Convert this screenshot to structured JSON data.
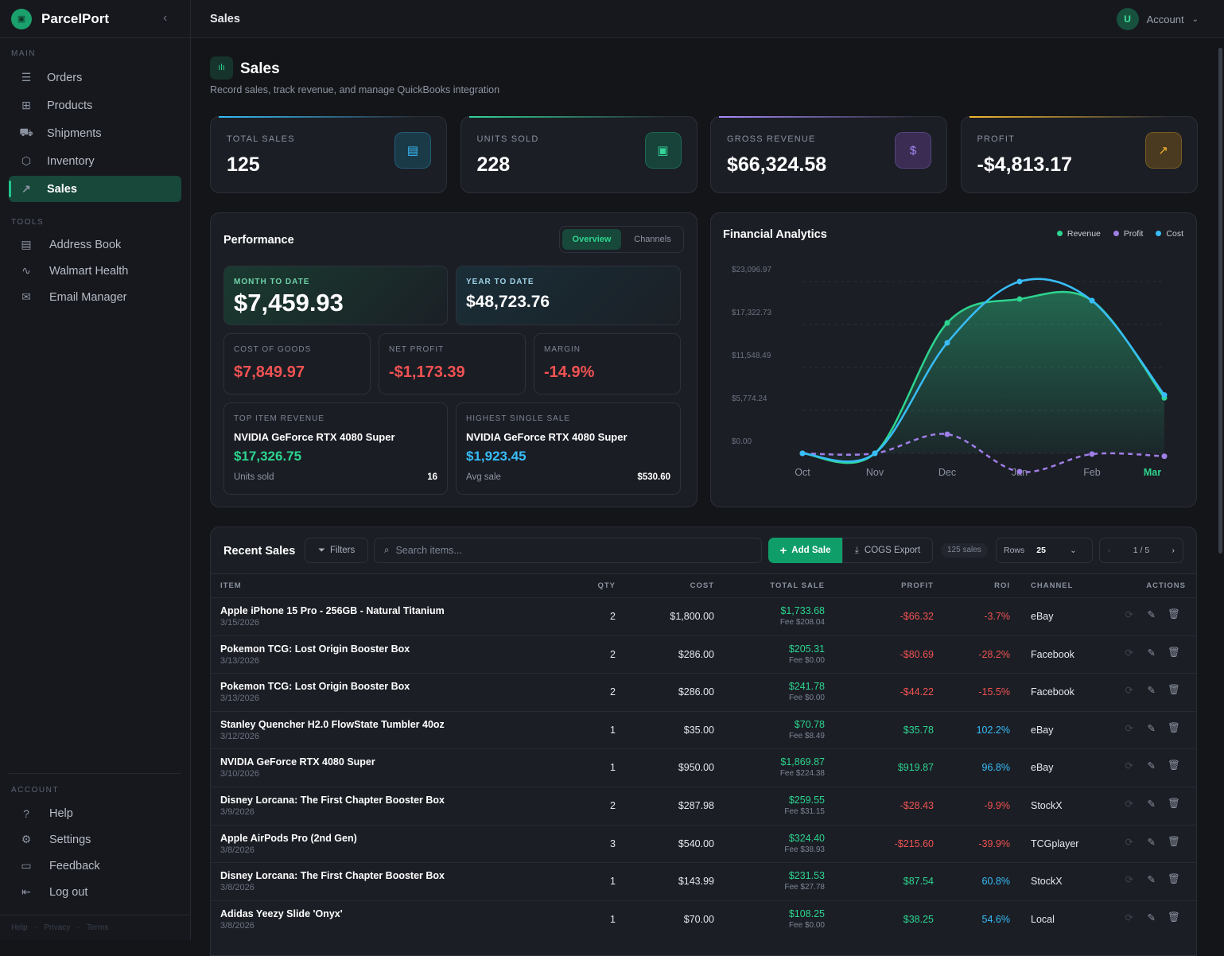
{
  "app": {
    "name": "ParcelPort",
    "page_title": "Sales"
  },
  "sidebar": {
    "main_label": "MAIN",
    "main": [
      {
        "label": "Orders",
        "icon": "list-icon"
      },
      {
        "label": "Products",
        "icon": "grid-icon"
      },
      {
        "label": "Shipments",
        "icon": "truck-icon"
      },
      {
        "label": "Inventory",
        "icon": "box-icon"
      },
      {
        "label": "Sales",
        "icon": "trend-icon",
        "active": true
      }
    ],
    "tools_label": "TOOLS",
    "tools": [
      {
        "label": "Address Book",
        "icon": "document-icon"
      },
      {
        "label": "Walmart Health",
        "icon": "pulse-icon"
      },
      {
        "label": "Email Manager",
        "icon": "mail-icon"
      }
    ],
    "account_label": "ACCOUNT",
    "account": [
      {
        "label": "Help",
        "icon": "help-icon"
      },
      {
        "label": "Settings",
        "icon": "gear-icon"
      },
      {
        "label": "Feedback",
        "icon": "message-icon"
      },
      {
        "label": "Log out",
        "icon": "logout-icon"
      }
    ],
    "footer": {
      "help": "Help",
      "privacy": "Privacy",
      "terms": "Terms",
      "sep": "·"
    }
  },
  "topbar": {
    "title": "Sales",
    "avatar": "U",
    "account": "Account"
  },
  "header": {
    "title": "Sales",
    "subtitle": "Record sales, track revenue, and manage QuickBooks integration"
  },
  "stats": [
    {
      "label": "TOTAL SALES",
      "value": "125",
      "color": "#38bdf8",
      "bg": "#1b3a48"
    },
    {
      "label": "UNITS SOLD",
      "value": "228",
      "color": "#34d399",
      "bg": "#17433a"
    },
    {
      "label": "GROSS REVENUE",
      "value": "$66,324.58",
      "color": "#a78bfa",
      "bg": "#3a2c52"
    },
    {
      "label": "PROFIT",
      "value": "-$4,813.17",
      "color": "#f5b731",
      "bg": "#4a3a1f"
    }
  ],
  "performance": {
    "title": "Performance",
    "tabs": [
      "Overview",
      "Channels"
    ],
    "mtd_label": "MONTH TO DATE",
    "mtd": "$7,459.93",
    "ytd_label": "YEAR TO DATE",
    "ytd": "$48,723.76",
    "cogs_label": "COST OF GOODS",
    "cogs": "$7,849.97",
    "net_label": "NET PROFIT",
    "net": "-$1,173.39",
    "margin_label": "MARGIN",
    "margin": "-14.9%",
    "top_label": "TOP ITEM REVENUE",
    "top_item": "NVIDIA GeForce RTX 4080 Super",
    "top_rev": "$17,326.75",
    "units_label": "Units sold",
    "units": "16",
    "high_label": "HIGHEST SINGLE SALE",
    "high_item": "NVIDIA GeForce RTX 4080 Super",
    "high_val": "$1,923.45",
    "avg_label": "Avg sale",
    "avg": "$530.60"
  },
  "chart_data": {
    "type": "line",
    "title": "Financial Analytics",
    "categories": [
      "Oct",
      "Nov",
      "Dec",
      "Jan",
      "Feb",
      "Mar"
    ],
    "highlight_category": "Mar",
    "yticks": [
      "$0.00",
      "$5,774.24",
      "$11,548.49",
      "$17,322.73",
      "$23,096.97"
    ],
    "ylim": [
      0,
      23096.97
    ],
    "grid": true,
    "legend": "top-right",
    "series": [
      {
        "name": "Revenue",
        "color": "#2dd48f",
        "values": [
          0,
          0,
          17540,
          20740,
          20530,
          7459.93
        ],
        "fill": true
      },
      {
        "name": "Profit",
        "color": "#a07ee8",
        "values": [
          0,
          0,
          2570,
          -2460,
          -100,
          -390
        ],
        "dashed": true
      },
      {
        "name": "Cost",
        "color": "#38bdf8",
        "values": [
          0,
          0,
          14860,
          23096.97,
          20530,
          7849.97
        ]
      }
    ]
  },
  "recent": {
    "title": "Recent Sales",
    "filters": "Filters",
    "search_placeholder": "Search items...",
    "add": "Add Sale",
    "export": "COGS Export",
    "count": "125 sales",
    "rows_label": "Rows",
    "rows_value": "25",
    "page": "1 / 5",
    "columns": [
      "ITEM",
      "QTY",
      "COST",
      "TOTAL SALE",
      "PROFIT",
      "ROI",
      "CHANNEL",
      "ACTIONS"
    ],
    "rows": [
      {
        "item": "Apple iPhone 15 Pro - 256GB - Natural Titanium",
        "date": "3/15/2026",
        "qty": "2",
        "cost": "$1,800.00",
        "total": "$1,733.68",
        "fee": "Fee $208.04",
        "profit": "-$66.32",
        "roi": "-3.7%",
        "channel": "eBay"
      },
      {
        "item": "Pokemon TCG: Lost Origin Booster Box",
        "date": "3/13/2026",
        "qty": "2",
        "cost": "$286.00",
        "total": "$205.31",
        "fee": "Fee $0.00",
        "profit": "-$80.69",
        "roi": "-28.2%",
        "channel": "Facebook"
      },
      {
        "item": "Pokemon TCG: Lost Origin Booster Box",
        "date": "3/13/2026",
        "qty": "2",
        "cost": "$286.00",
        "total": "$241.78",
        "fee": "Fee $0.00",
        "profit": "-$44.22",
        "roi": "-15.5%",
        "channel": "Facebook"
      },
      {
        "item": "Stanley Quencher H2.0 FlowState Tumbler 40oz",
        "date": "3/12/2026",
        "qty": "1",
        "cost": "$35.00",
        "total": "$70.78",
        "fee": "Fee $8.49",
        "profit": "$35.78",
        "roi": "102.2%",
        "channel": "eBay"
      },
      {
        "item": "NVIDIA GeForce RTX 4080 Super",
        "date": "3/10/2026",
        "qty": "1",
        "cost": "$950.00",
        "total": "$1,869.87",
        "fee": "Fee $224.38",
        "profit": "$919.87",
        "roi": "96.8%",
        "channel": "eBay"
      },
      {
        "item": "Disney Lorcana: The First Chapter Booster Box",
        "date": "3/9/2026",
        "qty": "2",
        "cost": "$287.98",
        "total": "$259.55",
        "fee": "Fee $31.15",
        "profit": "-$28.43",
        "roi": "-9.9%",
        "channel": "StockX"
      },
      {
        "item": "Apple AirPods Pro (2nd Gen)",
        "date": "3/8/2026",
        "qty": "3",
        "cost": "$540.00",
        "total": "$324.40",
        "fee": "Fee $38.93",
        "profit": "-$215.60",
        "roi": "-39.9%",
        "channel": "TCGplayer"
      },
      {
        "item": "Disney Lorcana: The First Chapter Booster Box",
        "date": "3/8/2026",
        "qty": "1",
        "cost": "$143.99",
        "total": "$231.53",
        "fee": "Fee $27.78",
        "profit": "$87.54",
        "roi": "60.8%",
        "channel": "StockX"
      },
      {
        "item": "Adidas Yeezy Slide 'Onyx'",
        "date": "3/8/2026",
        "qty": "1",
        "cost": "$70.00",
        "total": "$108.25",
        "fee": "Fee $0.00",
        "profit": "$38.25",
        "roi": "54.6%",
        "channel": "Local"
      }
    ]
  }
}
